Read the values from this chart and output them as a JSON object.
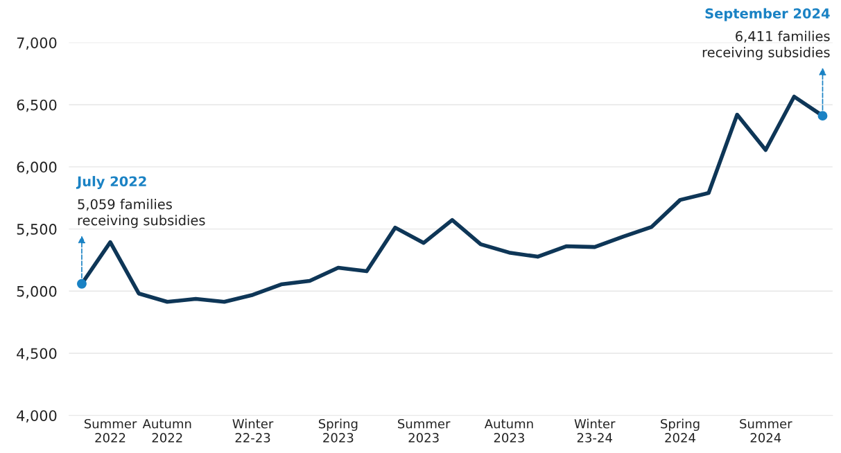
{
  "chart_data": {
    "type": "line",
    "categories": [
      null,
      "Summer\n2022",
      null,
      "Autumn\n2022",
      null,
      null,
      "Winter\n22-23",
      null,
      null,
      "Spring\n2023",
      null,
      null,
      "Summer\n2023",
      null,
      null,
      "Autumn\n2023",
      null,
      null,
      "Winter\n23-24",
      null,
      null,
      "Spring\n2024",
      null,
      null,
      "Summer\n2024",
      null,
      null
    ],
    "series": [
      {
        "color": "#0e3657",
        "values": [
          5059,
          5394,
          4981,
          4914,
          4937,
          4914,
          4970,
          5054,
          5082,
          5188,
          5160,
          5511,
          5388,
          5572,
          5377,
          5310,
          5277,
          5361,
          5355,
          5439,
          5517,
          5734,
          5790,
          6420,
          6136,
          6565,
          6411
        ]
      }
    ],
    "ylim": [
      4000,
      7000
    ],
    "yticks": [
      {
        "value": 4000,
        "label": "4,000"
      },
      {
        "value": 4500,
        "label": "4,500"
      },
      {
        "value": 5000,
        "label": "5,000"
      },
      {
        "value": 5500,
        "label": "5,500"
      },
      {
        "value": 6000,
        "label": "6,000"
      },
      {
        "value": 6500,
        "label": "6,500"
      },
      {
        "value": 7000,
        "label": "7,000"
      }
    ],
    "grid": "y",
    "marker": "none",
    "line_style": "solid",
    "annotations": [
      "July 2022",
      "5,059 families\nreceiving subsidies",
      "September 2024",
      "6,411 families\nreceiving subsidies"
    ]
  }
}
